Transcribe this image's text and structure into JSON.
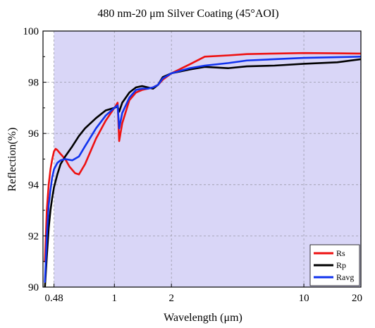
{
  "chart_data": {
    "type": "line",
    "title": "480 nm-20 μm Silver Coating (45°AOI)",
    "xlabel": "Wavelength (μm)",
    "ylabel": "Reflection(%)",
    "x_scale": "log",
    "xlim": [
      0.42,
      20
    ],
    "ylim": [
      90,
      100
    ],
    "x_ticks": [
      {
        "value": 0.48,
        "label": "0.48"
      },
      {
        "value": 1,
        "label": "1"
      },
      {
        "value": 2,
        "label": "2"
      },
      {
        "value": 10,
        "label": "10"
      },
      {
        "value": 20,
        "label": "20"
      }
    ],
    "y_ticks": [
      {
        "value": 90,
        "label": "90"
      },
      {
        "value": 92,
        "label": "92"
      },
      {
        "value": 94,
        "label": "94"
      },
      {
        "value": 96,
        "label": "96"
      },
      {
        "value": 98,
        "label": "98"
      },
      {
        "value": 100,
        "label": "100"
      }
    ],
    "shaded_region": {
      "x_start": 0.48,
      "x_end": 20,
      "color": "#d9d6f7"
    },
    "grid": true,
    "legend_position": "bottom-right",
    "series": [
      {
        "name": "Rs",
        "color": "#ee1111",
        "x": [
          0.43,
          0.44,
          0.45,
          0.46,
          0.47,
          0.48,
          0.49,
          0.5,
          0.52,
          0.55,
          0.58,
          0.62,
          0.65,
          0.7,
          0.8,
          0.9,
          1.0,
          1.04,
          1.06,
          1.1,
          1.2,
          1.3,
          1.4,
          1.5,
          1.6,
          1.7,
          1.8,
          2.0,
          2.5,
          3.0,
          4.0,
          5.0,
          7.0,
          10.0,
          15.0,
          20.0
        ],
        "y": [
          91.0,
          93.0,
          94.0,
          94.6,
          95.0,
          95.3,
          95.4,
          95.35,
          95.2,
          95.0,
          94.7,
          94.45,
          94.4,
          94.8,
          95.8,
          96.5,
          97.0,
          97.2,
          95.7,
          96.4,
          97.3,
          97.6,
          97.7,
          97.75,
          97.8,
          97.9,
          98.1,
          98.35,
          98.7,
          99.0,
          99.05,
          99.1,
          99.12,
          99.14,
          99.13,
          99.12
        ]
      },
      {
        "name": "Rp",
        "color": "#000000",
        "x": [
          0.43,
          0.44,
          0.45,
          0.46,
          0.47,
          0.48,
          0.5,
          0.52,
          0.55,
          0.6,
          0.65,
          0.7,
          0.8,
          0.9,
          1.0,
          1.04,
          1.06,
          1.1,
          1.2,
          1.3,
          1.4,
          1.5,
          1.6,
          1.7,
          1.8,
          2.0,
          2.5,
          3.0,
          4.0,
          5.0,
          7.0,
          10.0,
          15.0,
          20.0
        ],
        "y": [
          90.0,
          91.2,
          92.3,
          93.0,
          93.5,
          93.9,
          94.4,
          94.8,
          95.1,
          95.5,
          95.9,
          96.2,
          96.6,
          96.9,
          97.0,
          97.05,
          96.85,
          97.2,
          97.6,
          97.8,
          97.85,
          97.8,
          97.75,
          97.9,
          98.2,
          98.35,
          98.5,
          98.6,
          98.55,
          98.62,
          98.65,
          98.72,
          98.78,
          98.9
        ]
      },
      {
        "name": "Ravg",
        "color": "#1133ee",
        "x": [
          0.43,
          0.44,
          0.45,
          0.46,
          0.47,
          0.48,
          0.5,
          0.52,
          0.55,
          0.6,
          0.65,
          0.7,
          0.8,
          0.9,
          1.0,
          1.04,
          1.06,
          1.1,
          1.2,
          1.3,
          1.4,
          1.5,
          1.6,
          1.7,
          1.8,
          2.0,
          2.5,
          3.0,
          4.0,
          5.0,
          7.0,
          10.0,
          15.0,
          20.0
        ],
        "y": [
          90.2,
          92.0,
          93.2,
          93.8,
          94.3,
          94.6,
          94.85,
          94.95,
          95.0,
          94.95,
          95.1,
          95.5,
          96.2,
          96.7,
          97.0,
          97.1,
          96.2,
          96.8,
          97.4,
          97.7,
          97.75,
          97.75,
          97.8,
          97.9,
          98.15,
          98.35,
          98.55,
          98.65,
          98.75,
          98.85,
          98.9,
          98.95,
          98.98,
          99.0
        ]
      }
    ]
  }
}
